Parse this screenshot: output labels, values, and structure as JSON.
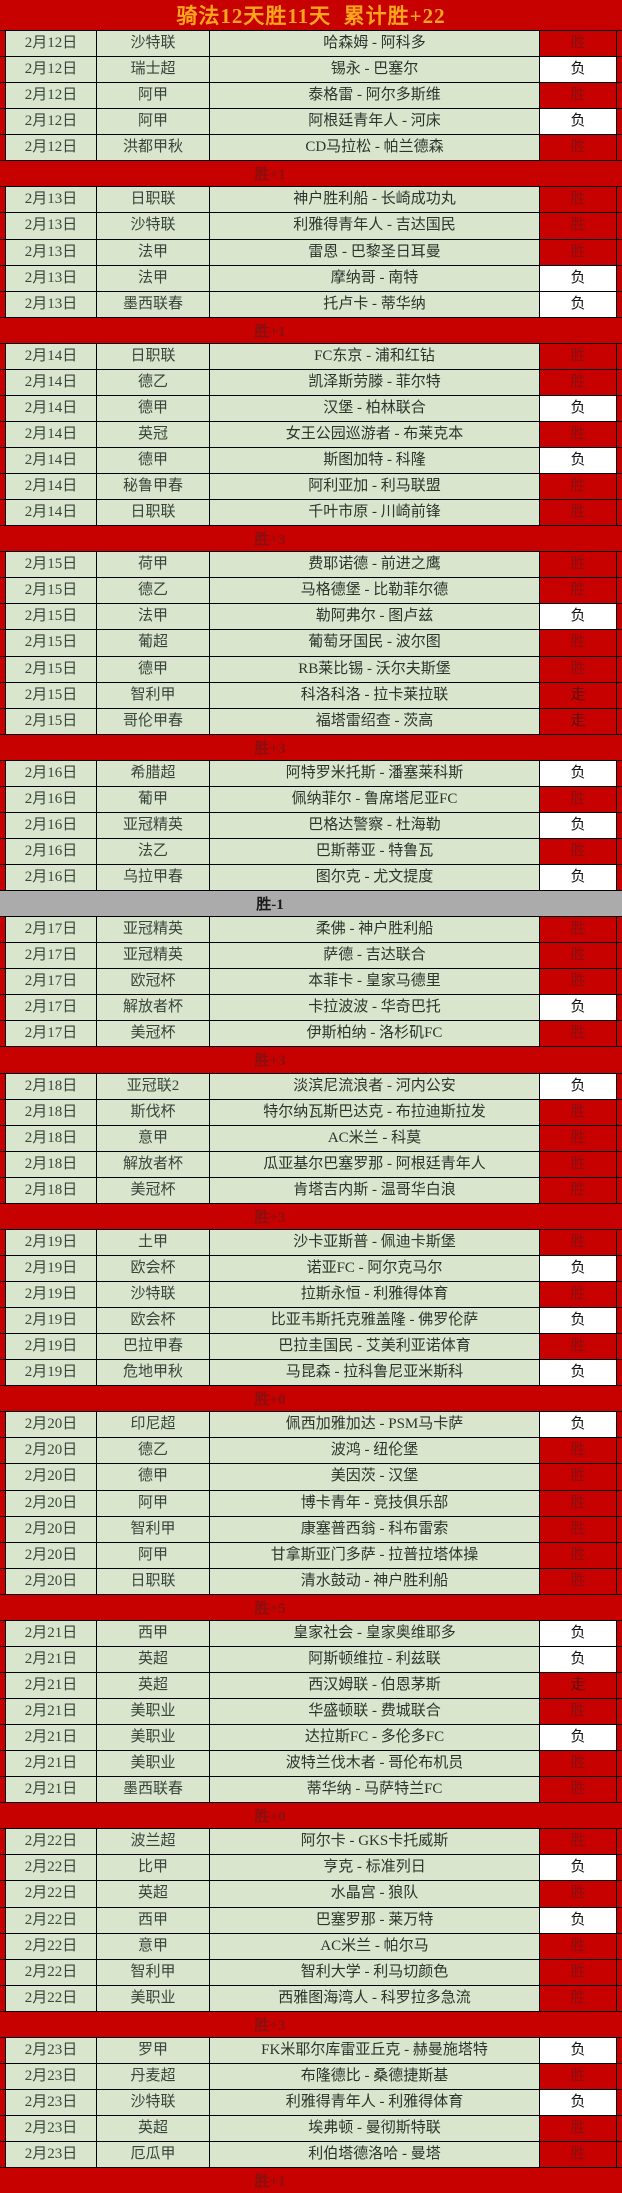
{
  "title": "骑法12天胜11天  累计胜+22",
  "legend": {
    "win": "胜",
    "loss": "负",
    "push": "走"
  },
  "colors": {
    "background_red": "#c70000",
    "title_text": "#ffa41c",
    "row_green": "#d9e5cd",
    "win_text": "#8a0f0f",
    "loss_cell_bg": "#ffffff",
    "loss_text": "#141414",
    "neutral_summary_bg": "#ababab"
  },
  "days": [
    {
      "summary": "胜+1",
      "style": "red",
      "rows": [
        {
          "date": "2月12日",
          "league": "沙特联",
          "match": "哈森姆 - 阿科多",
          "result": "胜"
        },
        {
          "date": "2月12日",
          "league": "瑞士超",
          "match": "锡永 - 巴塞尔",
          "result": "负"
        },
        {
          "date": "2月12日",
          "league": "阿甲",
          "match": "泰格雷 - 阿尔多斯维",
          "result": "胜"
        },
        {
          "date": "2月12日",
          "league": "阿甲",
          "match": "阿根廷青年人 - 河床",
          "result": "负"
        },
        {
          "date": "2月12日",
          "league": "洪都甲秋",
          "match": "CD马拉松 - 帕兰德森",
          "result": "胜"
        }
      ]
    },
    {
      "summary": "胜+1",
      "style": "red",
      "rows": [
        {
          "date": "2月13日",
          "league": "日职联",
          "match": "神户胜利船 - 长崎成功丸",
          "result": "胜"
        },
        {
          "date": "2月13日",
          "league": "沙特联",
          "match": "利雅得青年人 - 吉达国民",
          "result": "胜"
        },
        {
          "date": "2月13日",
          "league": "法甲",
          "match": "雷恩 - 巴黎圣日耳曼",
          "result": "胜"
        },
        {
          "date": "2月13日",
          "league": "法甲",
          "match": "摩纳哥 - 南特",
          "result": "负"
        },
        {
          "date": "2月13日",
          "league": "墨西联春",
          "match": "托卢卡 - 蒂华纳",
          "result": "负"
        }
      ]
    },
    {
      "summary": "胜+3",
      "style": "red",
      "rows": [
        {
          "date": "2月14日",
          "league": "日职联",
          "match": "FC东京 - 浦和红钻",
          "result": "胜"
        },
        {
          "date": "2月14日",
          "league": "德乙",
          "match": "凯泽斯劳滕 - 菲尔特",
          "result": "胜"
        },
        {
          "date": "2月14日",
          "league": "德甲",
          "match": "汉堡 - 柏林联合",
          "result": "负"
        },
        {
          "date": "2月14日",
          "league": "英冠",
          "match": "女王公园巡游者 - 布莱克本",
          "result": "胜"
        },
        {
          "date": "2月14日",
          "league": "德甲",
          "match": "斯图加特 - 科隆",
          "result": "负"
        },
        {
          "date": "2月14日",
          "league": "秘鲁甲春",
          "match": "阿利亚加 - 利马联盟",
          "result": "胜"
        },
        {
          "date": "2月14日",
          "league": "日职联",
          "match": "千叶市原 - 川崎前锋",
          "result": "胜"
        }
      ]
    },
    {
      "summary": "胜+3",
      "style": "red",
      "rows": [
        {
          "date": "2月15日",
          "league": "荷甲",
          "match": "费耶诺德 - 前进之鹰",
          "result": "胜"
        },
        {
          "date": "2月15日",
          "league": "德乙",
          "match": "马格德堡 - 比勒菲尔德",
          "result": "胜"
        },
        {
          "date": "2月15日",
          "league": "法甲",
          "match": "勒阿弗尔 - 图卢兹",
          "result": "负"
        },
        {
          "date": "2月15日",
          "league": "葡超",
          "match": "葡萄牙国民 - 波尔图",
          "result": "胜"
        },
        {
          "date": "2月15日",
          "league": "德甲",
          "match": "RB莱比锡 - 沃尔夫斯堡",
          "result": "胜"
        },
        {
          "date": "2月15日",
          "league": "智利甲",
          "match": "科洛科洛 - 拉卡莱拉联",
          "result": "走"
        },
        {
          "date": "2月15日",
          "league": "哥伦甲春",
          "match": "福塔雷绍查 - 茨高",
          "result": "走"
        }
      ]
    },
    {
      "summary": "胜-1",
      "style": "gray",
      "rows": [
        {
          "date": "2月16日",
          "league": "希腊超",
          "match": "阿特罗米托斯 - 潘塞莱科斯",
          "result": "负"
        },
        {
          "date": "2月16日",
          "league": "葡甲",
          "match": "佩纳菲尔 - 鲁席塔尼亚FC",
          "result": "胜"
        },
        {
          "date": "2月16日",
          "league": "亚冠精英",
          "match": "巴格达警察 - 杜海勒",
          "result": "负"
        },
        {
          "date": "2月16日",
          "league": "法乙",
          "match": "巴斯蒂亚 - 特鲁瓦",
          "result": "胜"
        },
        {
          "date": "2月16日",
          "league": "乌拉甲春",
          "match": "图尔克 - 尤文提度",
          "result": "负"
        }
      ]
    },
    {
      "summary": "胜+3",
      "style": "red",
      "rows": [
        {
          "date": "2月17日",
          "league": "亚冠精英",
          "match": "柔佛 - 神户胜利船",
          "result": "胜"
        },
        {
          "date": "2月17日",
          "league": "亚冠精英",
          "match": "萨德 - 吉达联合",
          "result": "胜"
        },
        {
          "date": "2月17日",
          "league": "欧冠杯",
          "match": "本菲卡 - 皇家马德里",
          "result": "胜"
        },
        {
          "date": "2月17日",
          "league": "解放者杯",
          "match": "卡拉波波 - 华奇巴托",
          "result": "负"
        },
        {
          "date": "2月17日",
          "league": "美冠杯",
          "match": "伊斯柏纳 - 洛杉矶FC",
          "result": "胜"
        }
      ]
    },
    {
      "summary": "胜+3",
      "style": "red",
      "rows": [
        {
          "date": "2月18日",
          "league": "亚冠联2",
          "match": "淡滨尼流浪者 - 河内公安",
          "result": "负"
        },
        {
          "date": "2月18日",
          "league": "斯伐杯",
          "match": "特尔纳瓦斯巴达克 - 布拉迪斯拉发",
          "result": "胜"
        },
        {
          "date": "2月18日",
          "league": "意甲",
          "match": "AC米兰 - 科莫",
          "result": "胜"
        },
        {
          "date": "2月18日",
          "league": "解放者杯",
          "match": "瓜亚基尔巴塞罗那 - 阿根廷青年人",
          "result": "胜"
        },
        {
          "date": "2月18日",
          "league": "美冠杯",
          "match": "肯塔吉内斯 - 温哥华白浪",
          "result": "胜"
        }
      ]
    },
    {
      "summary": "胜+0",
      "style": "red",
      "rows": [
        {
          "date": "2月19日",
          "league": "土甲",
          "match": "沙卡亚斯普 - 佩迪卡斯堡",
          "result": "胜"
        },
        {
          "date": "2月19日",
          "league": "欧会杯",
          "match": "诺亚FC - 阿尔克马尔",
          "result": "负"
        },
        {
          "date": "2月19日",
          "league": "沙特联",
          "match": "拉斯永恒 - 利雅得体育",
          "result": "胜"
        },
        {
          "date": "2月19日",
          "league": "欧会杯",
          "match": "比亚韦斯托克雅盖隆 - 佛罗伦萨",
          "result": "负"
        },
        {
          "date": "2月19日",
          "league": "巴拉甲春",
          "match": "巴拉圭国民 - 艾美利亚诺体育",
          "result": "胜"
        },
        {
          "date": "2月19日",
          "league": "危地甲秋",
          "match": "马昆森 - 拉科鲁尼亚米斯科",
          "result": "负"
        }
      ]
    },
    {
      "summary": "胜+5",
      "style": "red",
      "rows": [
        {
          "date": "2月20日",
          "league": "印尼超",
          "match": "佩西加雅加达 - PSM马卡萨",
          "result": "负"
        },
        {
          "date": "2月20日",
          "league": "德乙",
          "match": "波鸿 - 纽伦堡",
          "result": "胜"
        },
        {
          "date": "2月20日",
          "league": "德甲",
          "match": "美因茨 - 汉堡",
          "result": "胜"
        },
        {
          "date": "2月20日",
          "league": "阿甲",
          "match": "博卡青年 - 竞技俱乐部",
          "result": "胜"
        },
        {
          "date": "2月20日",
          "league": "智利甲",
          "match": "康塞普西翁 - 科布雷索",
          "result": "胜"
        },
        {
          "date": "2月20日",
          "league": "阿甲",
          "match": "甘拿斯亚门多萨 - 拉普拉塔体操",
          "result": "胜"
        },
        {
          "date": "2月20日",
          "league": "日职联",
          "match": "清水鼓动 - 神户胜利船",
          "result": "胜"
        }
      ]
    },
    {
      "summary": "胜+0",
      "style": "red",
      "rows": [
        {
          "date": "2月21日",
          "league": "西甲",
          "match": "皇家社会 - 皇家奥维耶多",
          "result": "负"
        },
        {
          "date": "2月21日",
          "league": "英超",
          "match": "阿斯顿维拉 - 利兹联",
          "result": "负"
        },
        {
          "date": "2月21日",
          "league": "英超",
          "match": "西汉姆联 - 伯恩茅斯",
          "result": "走"
        },
        {
          "date": "2月21日",
          "league": "美职业",
          "match": "华盛顿联 - 费城联合",
          "result": "胜"
        },
        {
          "date": "2月21日",
          "league": "美职业",
          "match": "达拉斯FC - 多伦多FC",
          "result": "负"
        },
        {
          "date": "2月21日",
          "league": "美职业",
          "match": "波特兰伐木者 - 哥伦布机员",
          "result": "胜"
        },
        {
          "date": "2月21日",
          "league": "墨西联春",
          "match": "蒂华纳 - 马萨特兰FC",
          "result": "胜"
        }
      ]
    },
    {
      "summary": "胜+3",
      "style": "red",
      "rows": [
        {
          "date": "2月22日",
          "league": "波兰超",
          "match": "阿尔卡 - GKS卡托威斯",
          "result": "胜"
        },
        {
          "date": "2月22日",
          "league": "比甲",
          "match": "亨克 - 标准列日",
          "result": "负"
        },
        {
          "date": "2月22日",
          "league": "英超",
          "match": "水晶宫 - 狼队",
          "result": "胜"
        },
        {
          "date": "2月22日",
          "league": "西甲",
          "match": "巴塞罗那 - 莱万特",
          "result": "负"
        },
        {
          "date": "2月22日",
          "league": "意甲",
          "match": "AC米兰 - 帕尔马",
          "result": "胜"
        },
        {
          "date": "2月22日",
          "league": "智利甲",
          "match": "智利大学 - 利马切颜色",
          "result": "胜"
        },
        {
          "date": "2月22日",
          "league": "美职业",
          "match": "西雅图海湾人 - 科罗拉多急流",
          "result": "胜"
        }
      ]
    },
    {
      "summary": "胜+1",
      "style": "red",
      "rows": [
        {
          "date": "2月23日",
          "league": "罗甲",
          "match": "FK米耶尔库雷亚丘克 - 赫曼施塔特",
          "result": "负"
        },
        {
          "date": "2月23日",
          "league": "丹麦超",
          "match": "布隆德比 - 桑德捷斯基",
          "result": "胜"
        },
        {
          "date": "2月23日",
          "league": "沙特联",
          "match": "利雅得青年人 - 利雅得体育",
          "result": "负"
        },
        {
          "date": "2月23日",
          "league": "英超",
          "match": "埃弗顿 - 曼彻斯特联",
          "result": "胜"
        },
        {
          "date": "2月23日",
          "league": "厄瓜甲",
          "match": "利伯塔德洛哈 - 曼塔",
          "result": "胜"
        }
      ]
    }
  ]
}
